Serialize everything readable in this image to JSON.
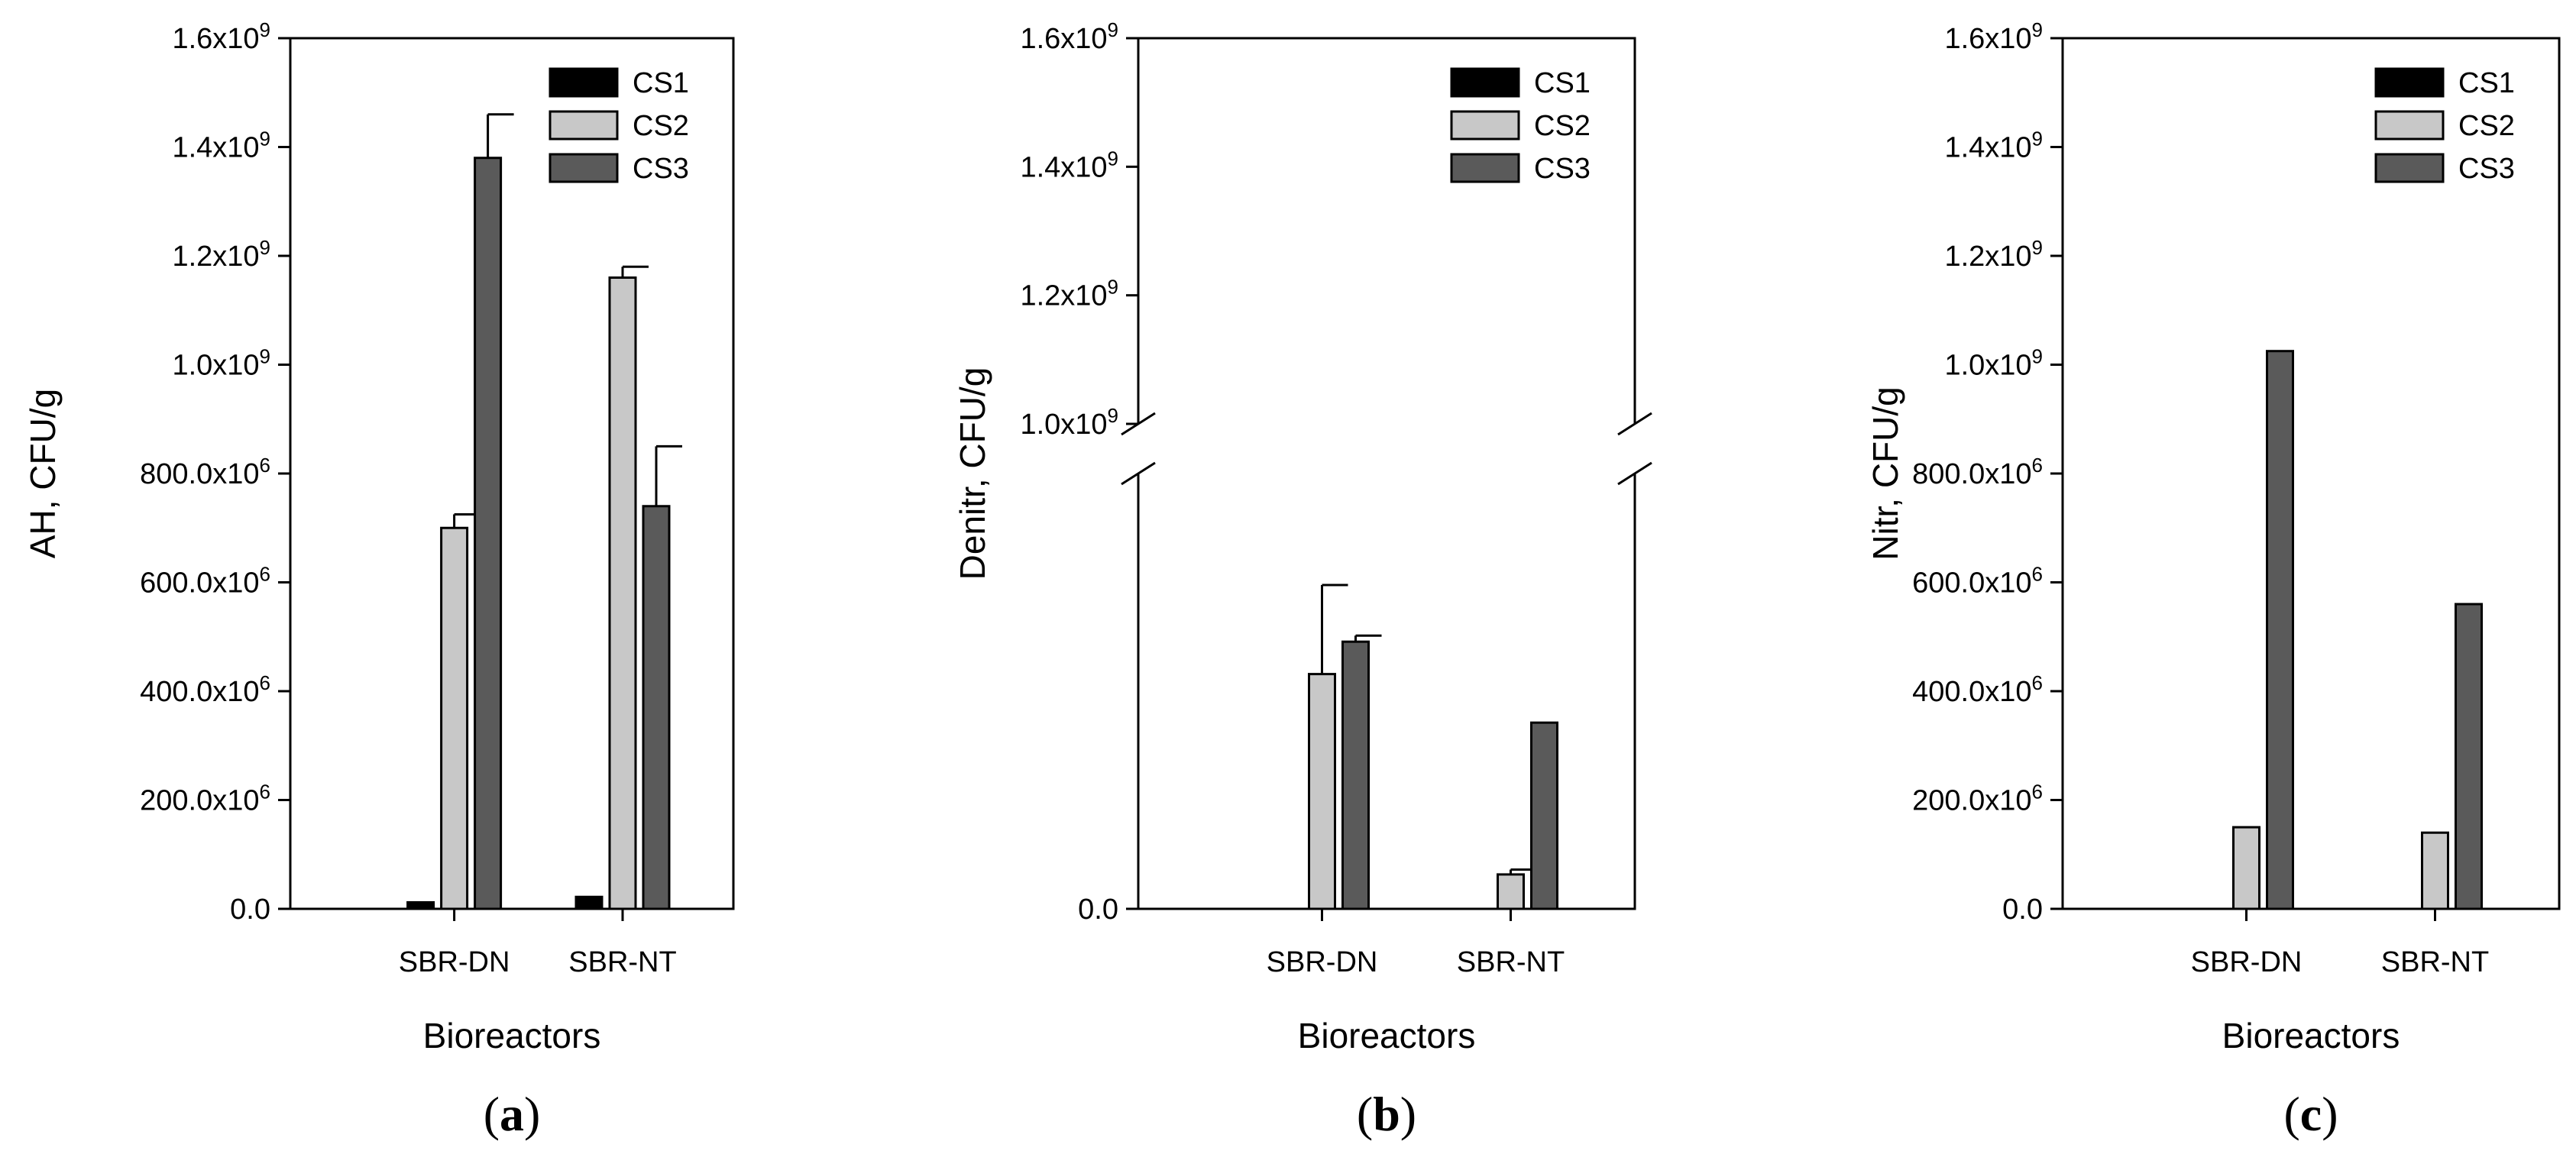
{
  "chart_data": [
    {
      "type": "bar",
      "panel_label": "a",
      "xlabel": "Bioreactors",
      "ylabel": "AH, CFU/g",
      "categories": [
        "SBR-DN",
        "SBR-NT"
      ],
      "ylim": [
        0,
        1600000000
      ],
      "yticks": [
        0,
        200000000,
        400000000,
        600000000,
        800000000,
        1000000000,
        1200000000,
        1400000000,
        1600000000
      ],
      "ytick_labels": [
        {
          "base": "0.0",
          "exp": ""
        },
        {
          "base": "200.0x10",
          "exp": "6"
        },
        {
          "base": "400.0x10",
          "exp": "6"
        },
        {
          "base": "600.0x10",
          "exp": "6"
        },
        {
          "base": "800.0x10",
          "exp": "6"
        },
        {
          "base": "1.0x10",
          "exp": "9"
        },
        {
          "base": "1.2x10",
          "exp": "9"
        },
        {
          "base": "1.4x10",
          "exp": "9"
        },
        {
          "base": "1.6x10",
          "exp": "9"
        }
      ],
      "legend_position": "top-right",
      "series": [
        {
          "name": "CS1",
          "color": "#000000",
          "values": [
            12000000,
            22000000
          ],
          "errors": [
            0,
            0
          ]
        },
        {
          "name": "CS2",
          "color": "#c8c8c8",
          "values": [
            700000000,
            1160000000
          ],
          "errors": [
            25000000,
            20000000
          ]
        },
        {
          "name": "CS3",
          "color": "#5a5a5a",
          "values": [
            1380000000,
            740000000
          ],
          "errors": [
            80000000,
            110000000
          ]
        }
      ]
    },
    {
      "type": "bar",
      "panel_label": "b",
      "xlabel": "Bioreactors",
      "ylabel": "Denitr, CFU/g",
      "categories": [
        "SBR-DN",
        "SBR-NT"
      ],
      "axis_break": true,
      "ylim_lower": [
        0,
        1000000
      ],
      "ylim_upper": [
        1000000000,
        1600000000
      ],
      "lower_yticks": [
        0
      ],
      "lower_ytick_labels": [
        {
          "base": "0.0",
          "exp": ""
        }
      ],
      "upper_yticks": [
        1000000000,
        1200000000,
        1400000000,
        1600000000
      ],
      "upper_ytick_labels": [
        {
          "base": "1.0x10",
          "exp": "9"
        },
        {
          "base": "1.2x10",
          "exp": "9"
        },
        {
          "base": "1.4x10",
          "exp": "9"
        },
        {
          "base": "1.6x10",
          "exp": "9"
        }
      ],
      "legend_position": "top-right",
      "series": [
        {
          "name": "CS1",
          "color": "#000000",
          "values": [
            0,
            0
          ],
          "errors": [
            0,
            0
          ]
        },
        {
          "name": "CS2",
          "color": "#c8c8c8",
          "values": [
            580000,
            85000
          ],
          "errors": [
            220000,
            12000
          ]
        },
        {
          "name": "CS3",
          "color": "#5a5a5a",
          "values": [
            660000,
            460000
          ],
          "errors": [
            15000,
            0
          ]
        }
      ]
    },
    {
      "type": "bar",
      "panel_label": "c",
      "xlabel": "Bioreactors",
      "ylabel": "Nitr, CFU/g",
      "categories": [
        "SBR-DN",
        "SBR-NT"
      ],
      "ylim": [
        0,
        1600000000
      ],
      "yticks": [
        0,
        200000000,
        400000000,
        600000000,
        800000000,
        1000000000,
        1200000000,
        1400000000,
        1600000000
      ],
      "ytick_labels": [
        {
          "base": "0.0",
          "exp": ""
        },
        {
          "base": "200.0x10",
          "exp": "6"
        },
        {
          "base": "400.0x10",
          "exp": "6"
        },
        {
          "base": "600.0x10",
          "exp": "6"
        },
        {
          "base": "800.0x10",
          "exp": "6"
        },
        {
          "base": "1.0x10",
          "exp": "9"
        },
        {
          "base": "1.2x10",
          "exp": "9"
        },
        {
          "base": "1.4x10",
          "exp": "9"
        },
        {
          "base": "1.6x10",
          "exp": "9"
        }
      ],
      "legend_position": "top-right",
      "series": [
        {
          "name": "CS1",
          "color": "#000000",
          "values": [
            0,
            0
          ],
          "errors": [
            0,
            0
          ]
        },
        {
          "name": "CS2",
          "color": "#c8c8c8",
          "values": [
            150000000,
            140000000
          ],
          "errors": [
            0,
            0
          ]
        },
        {
          "name": "CS3",
          "color": "#5a5a5a",
          "values": [
            1025000000,
            560000000
          ],
          "errors": [
            0,
            0
          ]
        }
      ]
    }
  ]
}
